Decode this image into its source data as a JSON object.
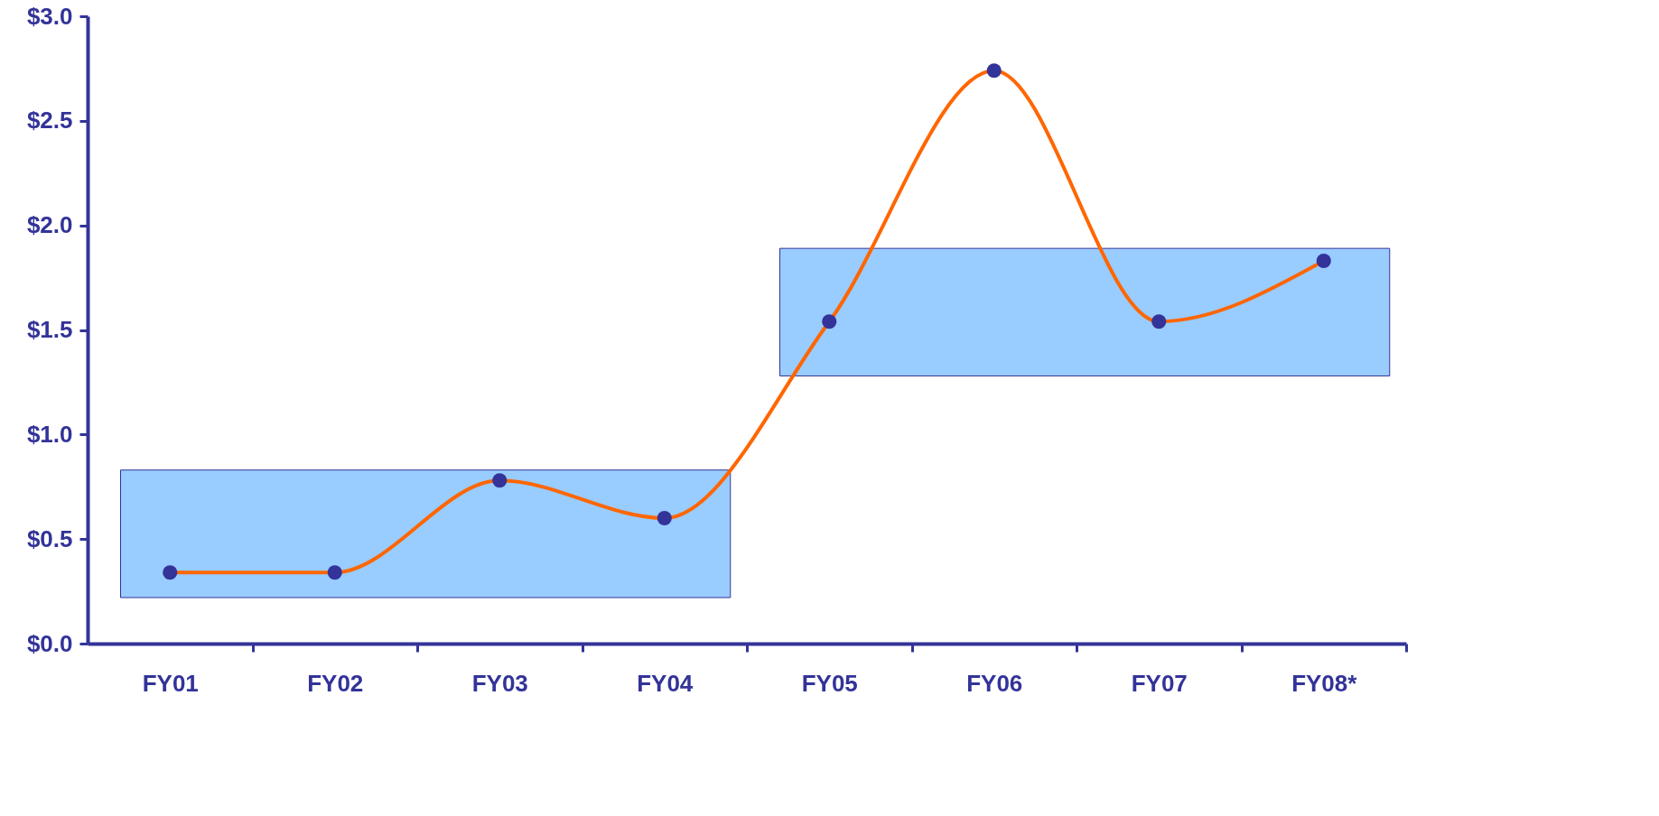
{
  "chart_data": {
    "type": "line",
    "categories": [
      "FY01",
      "FY02",
      "FY03",
      "FY04",
      "FY05",
      "FY06",
      "FY07",
      "FY08*"
    ],
    "series": [
      {
        "color": "#ff6600",
        "values": [
          0.34,
          0.34,
          0.78,
          0.6,
          1.54,
          2.74,
          1.54,
          1.83
        ]
      }
    ],
    "ylim": [
      0,
      3
    ],
    "yticks": [
      {
        "value": 0,
        "label": "$0.0"
      },
      {
        "value": 0.5,
        "label": "$0.5"
      },
      {
        "value": 1,
        "label": "$1.0"
      },
      {
        "value": 1.5,
        "label": "$1.5"
      },
      {
        "value": 2,
        "label": "$2.0"
      },
      {
        "value": 2.5,
        "label": "$2.5"
      },
      {
        "value": 3,
        "label": "$3.0"
      }
    ],
    "bands": [
      {
        "axis": "y",
        "from": 0.22,
        "to": 0.83,
        "color": "#99ccff"
      },
      {
        "axis": "y",
        "from": 1.28,
        "to": 1.89,
        "color": "#99ccff"
      }
    ],
    "marker": "circle",
    "grid": false
  }
}
